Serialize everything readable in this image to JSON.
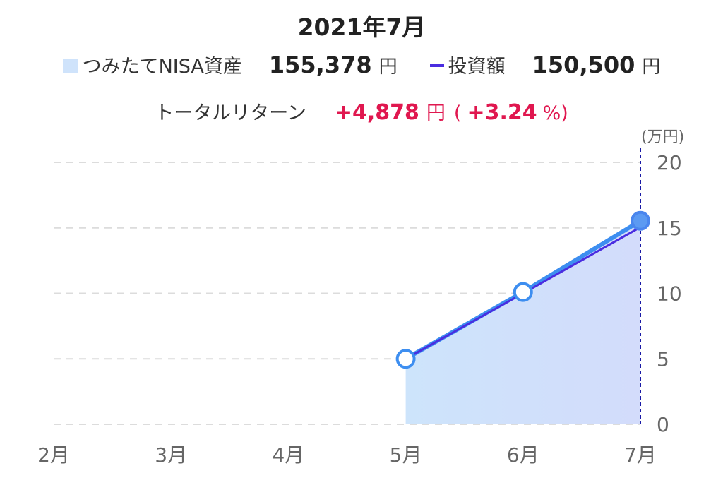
{
  "header": {
    "title": "2021年7月"
  },
  "legend": {
    "asset_label": "つみたてNISA資産",
    "asset_value": "155,378",
    "asset_unit": "円",
    "invest_label": "投資額",
    "invest_value": "150,500",
    "invest_unit": "円"
  },
  "total_return": {
    "label": "トータルリターン",
    "amount": "+4,878",
    "amount_unit": "円",
    "paren_open": "(",
    "percent": "+3.24",
    "percent_unit": "%)"
  },
  "chart_data": {
    "type": "area",
    "unit_label": "(万円)",
    "categories": [
      "2月",
      "3月",
      "4月",
      "5月",
      "6月",
      "7月"
    ],
    "ylim": [
      0,
      20
    ],
    "yticks": [
      0,
      5,
      10,
      15,
      20
    ],
    "y_axis_side": "right",
    "grid": true,
    "series": [
      {
        "name": "つみたてNISA資産",
        "kind": "area",
        "values": [
          null,
          null,
          null,
          5.0,
          10.1,
          15.5378
        ],
        "color": "#cfe3fb"
      },
      {
        "name": "投資額",
        "kind": "line",
        "values": [
          null,
          null,
          null,
          5.0,
          10.0,
          15.05
        ],
        "color": "#4a2de0"
      }
    ],
    "asset_line_color": "#3d8ef0",
    "highlight_category": "7月",
    "highlight_color": "#1a1aa6"
  }
}
